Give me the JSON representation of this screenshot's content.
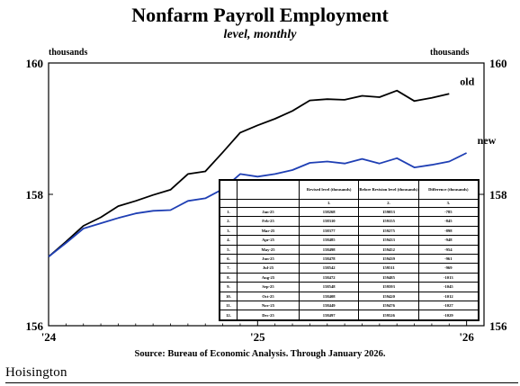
{
  "chart_data": {
    "type": "line",
    "title": "Nonfarm Payroll Employment",
    "subtitle": "level, monthly",
    "left_unit": "thousands",
    "right_unit": "thousands",
    "source": "Source: Bureau of Economic Analysis. Through January 2026.",
    "ylim": [
      156,
      160
    ],
    "yticks": [
      156,
      158,
      160
    ],
    "ytick_labels": [
      "156",
      "158",
      "160"
    ],
    "xticks": [
      0,
      12,
      24
    ],
    "xtick_labels": [
      "'24",
      "'25",
      "'26"
    ],
    "xlim": [
      0,
      25
    ],
    "grid": false,
    "series": [
      {
        "name": "old",
        "color": "#000000",
        "x": [
          0,
          1,
          2,
          3,
          4,
          5,
          6,
          7,
          8,
          9,
          10,
          11,
          12,
          13,
          14,
          15,
          16,
          17,
          18,
          19,
          20,
          21,
          22,
          23
        ],
        "values": [
          157.05,
          157.28,
          157.52,
          157.65,
          157.82,
          157.9,
          157.99,
          158.07,
          158.31,
          158.35,
          158.64,
          158.94,
          159.05,
          159.15,
          159.27,
          159.43,
          159.45,
          159.44,
          159.5,
          159.48,
          159.58,
          159.42,
          159.47,
          159.53
        ]
      },
      {
        "name": "new",
        "color": "#1f3fb4",
        "x": [
          0,
          1,
          2,
          3,
          4,
          5,
          6,
          7,
          8,
          9,
          10,
          11,
          12,
          13,
          14,
          15,
          16,
          17,
          18,
          19,
          20,
          21,
          22,
          23,
          24
        ],
        "values": [
          157.05,
          157.26,
          157.48,
          157.56,
          157.64,
          157.71,
          157.75,
          157.76,
          157.9,
          157.94,
          158.08,
          158.31,
          158.27,
          158.31,
          158.37,
          158.48,
          158.5,
          158.47,
          158.54,
          158.47,
          158.55,
          158.41,
          158.45,
          158.5,
          158.63
        ]
      }
    ],
    "table": {
      "headers": [
        "",
        "",
        "Revised level (thousands)",
        "Before Revision level (thousands)",
        "Difference (thousands)"
      ],
      "subheaders": [
        "",
        "",
        "1.",
        "2.",
        "3."
      ],
      "rows": [
        [
          "1.",
          "Jan-25",
          "158268",
          "159053",
          "-785"
        ],
        [
          "2.",
          "Feb-25",
          "158310",
          "159155",
          "-845"
        ],
        [
          "3.",
          "Mar-25",
          "158377",
          "159275",
          "-898"
        ],
        [
          "4.",
          "Apr-25",
          "158485",
          "159433",
          "-948"
        ],
        [
          "5.",
          "May-25",
          "158498",
          "159452",
          "-954"
        ],
        [
          "6.",
          "Jun-25",
          "158478",
          "159439",
          "-961"
        ],
        [
          "7.",
          "Jul-25",
          "158542",
          "159511",
          "-969"
        ],
        [
          "8.",
          "Aug-25",
          "158472",
          "159485",
          "-1013"
        ],
        [
          "9.",
          "Sep-25",
          "158548",
          "159593",
          "-1045"
        ],
        [
          "10.",
          "Oct-25",
          "158408",
          "159420",
          "-1012"
        ],
        [
          "11.",
          "Nov-25",
          "158449",
          "159476",
          "-1027"
        ],
        [
          "12.",
          "Dec-25",
          "158497",
          "159526",
          "-1029"
        ]
      ]
    }
  },
  "brand": {
    "logo_text": "Hoisington"
  }
}
